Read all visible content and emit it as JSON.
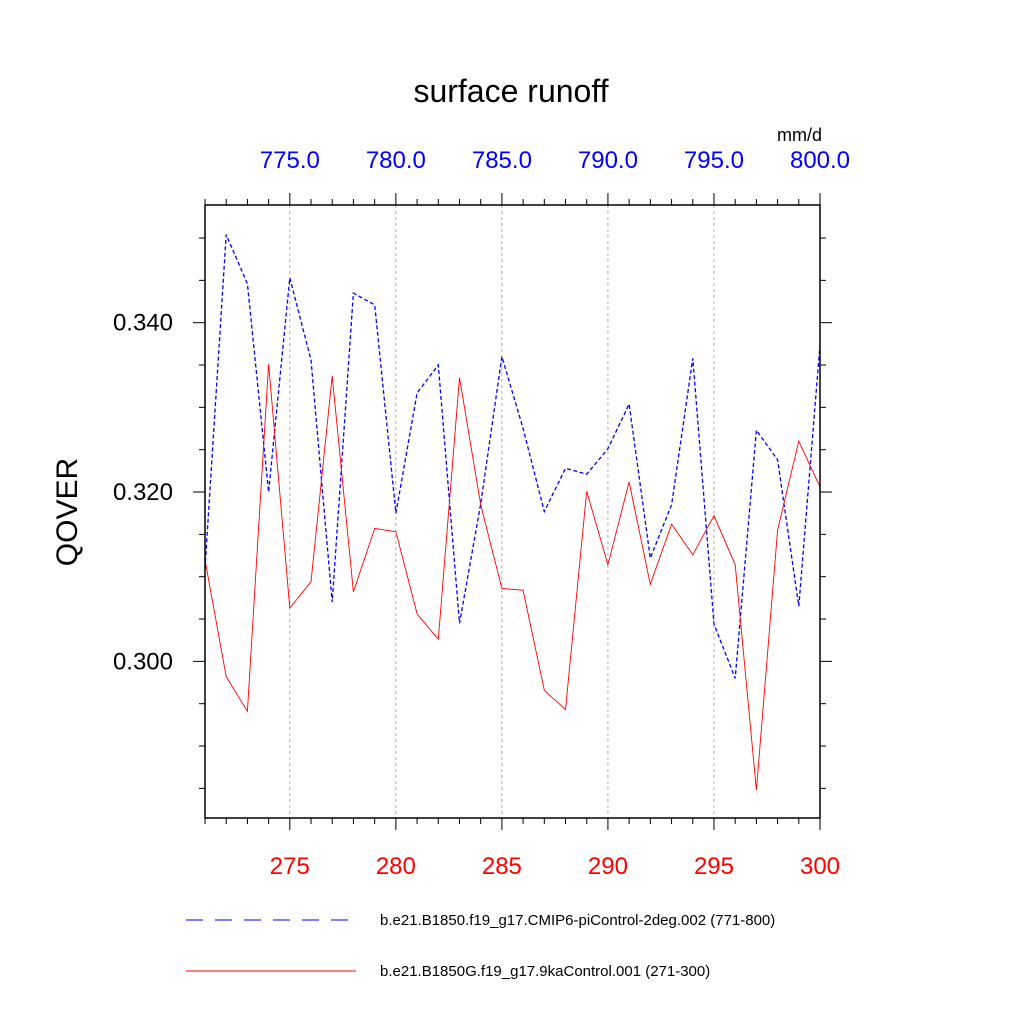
{
  "chart_data": {
    "type": "line",
    "title": "surface runoff",
    "units": "mm/d",
    "ylabel": "QOVER",
    "xlabel": "",
    "ylim": [
      0.2815,
      0.3539
    ],
    "y_ticks": [
      0.3,
      0.32,
      0.34
    ],
    "y_tick_labels": [
      "0.300",
      "0.320",
      "0.340"
    ],
    "y_minor_step": 0.005,
    "bottom_axis": {
      "range": [
        271,
        300
      ],
      "ticks": [
        275,
        280,
        285,
        290,
        295,
        300
      ],
      "tick_labels": [
        "275",
        "280",
        "285",
        "290",
        "295",
        "300"
      ],
      "color": "#ff0000"
    },
    "top_axis": {
      "range": [
        771,
        800
      ],
      "ticks": [
        775,
        780,
        785,
        790,
        795,
        800
      ],
      "tick_labels": [
        "775.0",
        "780.0",
        "785.0",
        "790.0",
        "795.0",
        "800.0"
      ],
      "color": "#0000ff"
    },
    "grid": "vertical dashed at major ticks",
    "legend_position": "bottom",
    "series": [
      {
        "name": "b.e21.B1850.f19_g17.CMIP6-piControl-2deg.002 (771-800)",
        "axis": "top",
        "style": "dashed",
        "color": "#0000ff",
        "x": [
          771,
          772,
          773,
          774,
          775,
          776,
          777,
          778,
          779,
          780,
          781,
          782,
          783,
          784,
          785,
          786,
          787,
          788,
          789,
          790,
          791,
          792,
          793,
          794,
          795,
          796,
          797,
          798,
          799,
          800
        ],
        "values": [
          0.311,
          0.3504,
          0.3446,
          0.32,
          0.3453,
          0.3356,
          0.307,
          0.3435,
          0.3421,
          0.3175,
          0.3317,
          0.335,
          0.3045,
          0.3186,
          0.336,
          0.3275,
          0.3177,
          0.3228,
          0.3221,
          0.3251,
          0.3304,
          0.3122,
          0.3185,
          0.3358,
          0.3044,
          0.298,
          0.3273,
          0.3238,
          0.3065,
          0.3374
        ]
      },
      {
        "name": "b.e21.B1850G.f19_g17.9kaControl.001 (271-300)",
        "axis": "bottom",
        "style": "solid",
        "color": "#ff0000",
        "x": [
          271,
          272,
          273,
          274,
          275,
          276,
          277,
          278,
          279,
          280,
          281,
          282,
          283,
          284,
          285,
          286,
          287,
          288,
          289,
          290,
          291,
          292,
          293,
          294,
          295,
          296,
          297,
          298,
          299,
          300
        ],
        "values": [
          0.312,
          0.2982,
          0.2941,
          0.3351,
          0.3063,
          0.3094,
          0.3337,
          0.3082,
          0.3157,
          0.3153,
          0.3056,
          0.3026,
          0.3335,
          0.3185,
          0.3086,
          0.3084,
          0.2966,
          0.2943,
          0.3201,
          0.3114,
          0.3212,
          0.3091,
          0.3162,
          0.3126,
          0.3172,
          0.3114,
          0.2848,
          0.3155,
          0.326,
          0.3206
        ]
      }
    ]
  }
}
